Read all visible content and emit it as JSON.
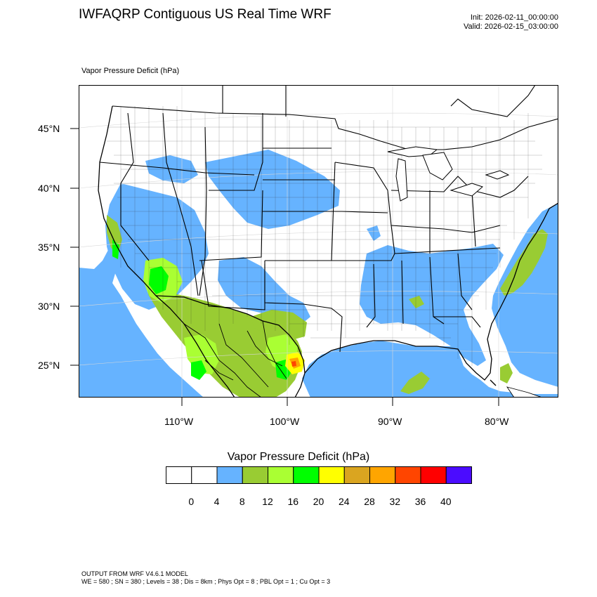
{
  "header": {
    "title": "IWFAQRP Contiguous US Real Time WRF",
    "init": "Init: 2026-02-11_00:00:00",
    "valid": "Valid: 2026-02-15_03:00:00"
  },
  "field_label": "Vapor Pressure Deficit   (hPa)",
  "map": {
    "lat_labels": [
      "45°N",
      "40°N",
      "35°N",
      "30°N",
      "25°N"
    ],
    "lon_labels": [
      "110°W",
      "100°W",
      "90°W",
      "80°W"
    ],
    "colors": {
      "ocean_fill": "#66b3ff",
      "bin_4_8": "#66b3ff",
      "bin_8_12": "#99cc33",
      "bin_12_16": "#aaff33",
      "bin_16_20": "#00ff00",
      "bin_20_24": "#ffff00",
      "bin_24_28": "#daa520",
      "bin_28_32": "#ffa500",
      "bin_32_36": "#ff4500",
      "bin_36_40": "#ff0000",
      "bin_40_plus": "#4b0cff"
    }
  },
  "legend": {
    "title": "Vapor Pressure Deficit  (hPa)",
    "ticks": [
      "0",
      "4",
      "8",
      "12",
      "16",
      "20",
      "24",
      "28",
      "32",
      "36",
      "40"
    ],
    "bins": [
      {
        "range": "<0",
        "color": "#ffffff"
      },
      {
        "range": "0-4",
        "color": "#ffffff"
      },
      {
        "range": "4-8",
        "color": "#66b3ff"
      },
      {
        "range": "8-12",
        "color": "#99cc33"
      },
      {
        "range": "12-16",
        "color": "#aaff33"
      },
      {
        "range": "16-20",
        "color": "#00ff00"
      },
      {
        "range": "20-24",
        "color": "#ffff00"
      },
      {
        "range": "24-28",
        "color": "#daa520"
      },
      {
        "range": "28-32",
        "color": "#ffa500"
      },
      {
        "range": "32-36",
        "color": "#ff4500"
      },
      {
        "range": "36-40",
        "color": "#ff0000"
      },
      {
        "range": ">40",
        "color": "#4b0cff"
      }
    ]
  },
  "footer": {
    "line1": "OUTPUT FROM WRF V4.6.1 MODEL",
    "line2": "WE = 580 ; SN = 380 ; Levels = 38 ; Dis = 8km ; Phys Opt = 8 ; PBL Opt = 1 ; Cu Opt = 3"
  }
}
